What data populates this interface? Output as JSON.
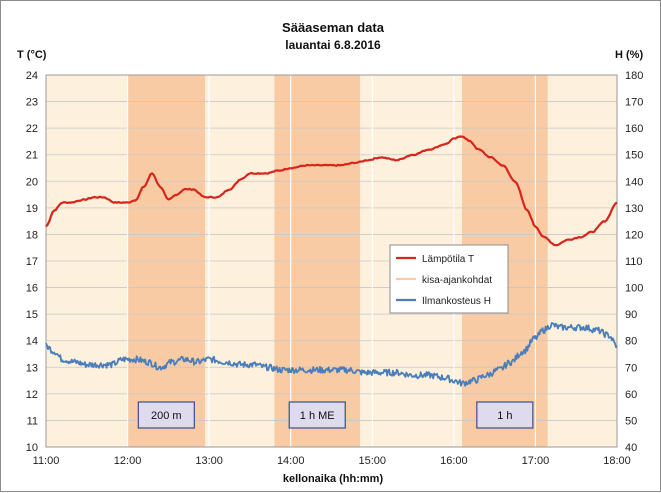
{
  "chart_data": {
    "type": "line",
    "title": "Sääaseman data",
    "subtitle": "lauantai 6.8.2016",
    "xlabel": "kellonaika (hh:mm)",
    "ylabel_left": "T (°C)",
    "ylabel_right": "H (%)",
    "x_ticks": [
      "11:00",
      "12:00",
      "13:00",
      "14:00",
      "15:00",
      "16:00",
      "17:00",
      "18:00"
    ],
    "xlim": [
      11,
      18
    ],
    "ylim_left": [
      10,
      24
    ],
    "ylim_right": [
      40,
      180
    ],
    "yticks_left": [
      10,
      11,
      12,
      13,
      14,
      15,
      16,
      17,
      18,
      19,
      20,
      21,
      22,
      23,
      24
    ],
    "yticks_right": [
      40,
      50,
      60,
      70,
      80,
      90,
      100,
      110,
      120,
      130,
      140,
      150,
      160,
      170,
      180
    ],
    "grid": true,
    "legend_position": "center-right",
    "colors": {
      "temperature": "#d9241b",
      "humidity": "#4a7ebb",
      "event": "#f8cba4",
      "background": "#fdf0dc",
      "annotation_box": "#dedbee",
      "annotation_border": "#3c4d8a"
    },
    "series": [
      {
        "name": "Lämpötila  T",
        "axis": "left",
        "x": [
          11.0,
          11.1,
          11.2,
          11.3,
          11.45,
          11.6,
          11.7,
          11.85,
          12.0,
          12.1,
          12.2,
          12.3,
          12.4,
          12.5,
          12.6,
          12.7,
          12.8,
          12.95,
          13.1,
          13.25,
          13.4,
          13.5,
          13.7,
          13.85,
          14.0,
          14.2,
          14.4,
          14.6,
          14.8,
          14.95,
          15.1,
          15.3,
          15.5,
          15.7,
          15.9,
          16.0,
          16.1,
          16.2,
          16.3,
          16.45,
          16.6,
          16.75,
          16.9,
          17.0,
          17.1,
          17.25,
          17.4,
          17.55,
          17.7,
          17.85,
          18.0
        ],
        "values": [
          18.3,
          18.9,
          19.2,
          19.2,
          19.3,
          19.4,
          19.4,
          19.2,
          19.2,
          19.3,
          19.8,
          20.3,
          19.8,
          19.3,
          19.5,
          19.7,
          19.7,
          19.4,
          19.4,
          19.7,
          20.1,
          20.3,
          20.3,
          20.4,
          20.5,
          20.6,
          20.6,
          20.6,
          20.7,
          20.8,
          20.9,
          20.8,
          21.0,
          21.2,
          21.4,
          21.6,
          21.7,
          21.5,
          21.2,
          20.9,
          20.6,
          20.0,
          18.9,
          18.3,
          17.9,
          17.6,
          17.8,
          17.9,
          18.1,
          18.5,
          19.2
        ]
      },
      {
        "name": "kisa-ajankohdat",
        "axis": "none",
        "type": "bands",
        "bands": [
          [
            12.0,
            12.95
          ],
          [
            13.8,
            14.85
          ],
          [
            16.1,
            17.15
          ]
        ]
      },
      {
        "name": "Ilmankosteus  H",
        "axis": "right",
        "x": [
          11.0,
          11.1,
          11.2,
          11.35,
          11.5,
          11.65,
          11.8,
          11.95,
          12.1,
          12.25,
          12.4,
          12.55,
          12.7,
          12.85,
          13.0,
          13.2,
          13.4,
          13.55,
          13.7,
          13.9,
          14.1,
          14.3,
          14.5,
          14.7,
          14.9,
          15.1,
          15.3,
          15.5,
          15.7,
          15.9,
          16.0,
          16.1,
          16.25,
          16.4,
          16.55,
          16.7,
          16.85,
          17.0,
          17.1,
          17.2,
          17.3,
          17.45,
          17.6,
          17.75,
          17.9,
          18.0
        ],
        "values": [
          78,
          76,
          73,
          72,
          71,
          71,
          71,
          73,
          73,
          72,
          70,
          72,
          73,
          72,
          73,
          72,
          71,
          71,
          70,
          69,
          69,
          69,
          69,
          69,
          68,
          68,
          68,
          67,
          67,
          66,
          65,
          64,
          65,
          67,
          69,
          72,
          76,
          81,
          84,
          86,
          85,
          85,
          85,
          84,
          82,
          78
        ]
      }
    ],
    "annotations": [
      "200 m",
      "1 h ME",
      "1 h"
    ]
  }
}
